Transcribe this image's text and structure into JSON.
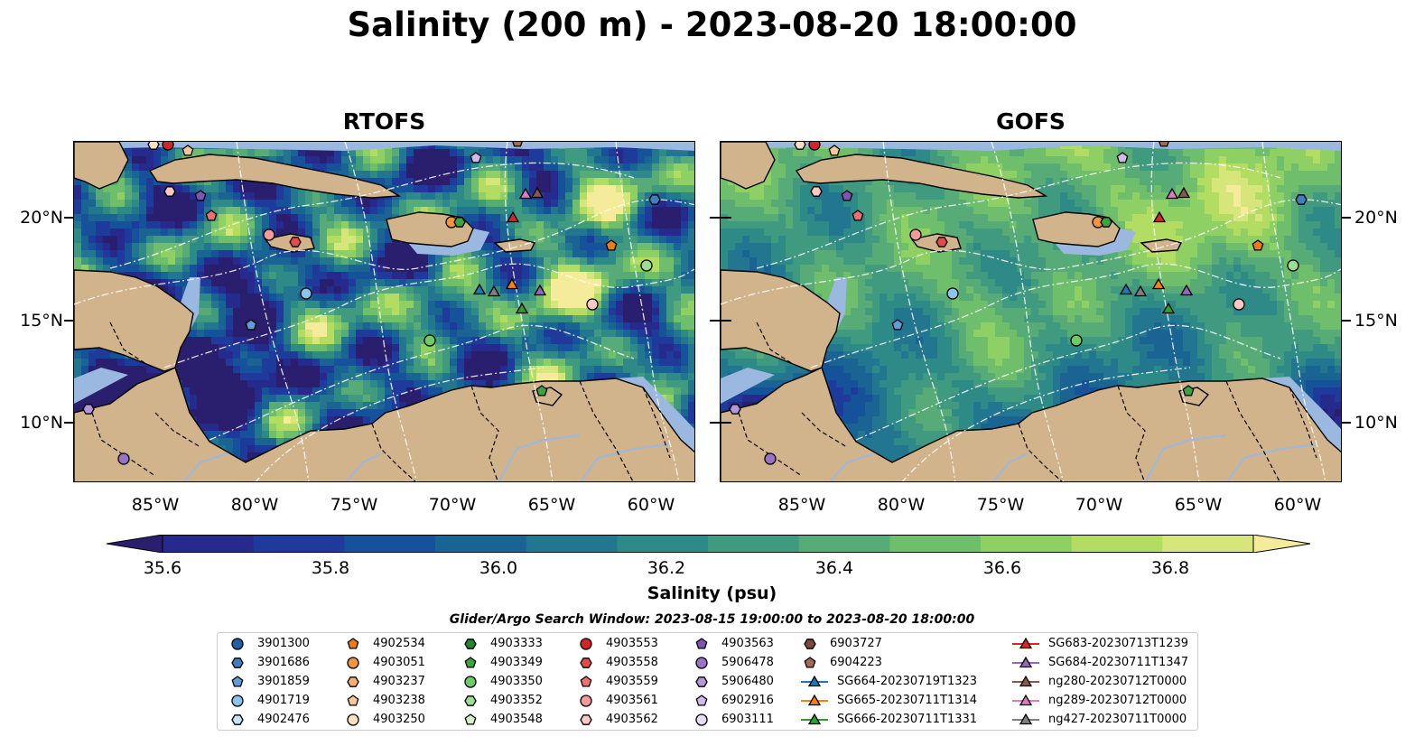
{
  "title": "Salinity (200 m) - 2023-08-20 18:00:00",
  "panels": [
    {
      "title": "RTOFS",
      "scheme": "rtofs"
    },
    {
      "title": "GOFS",
      "scheme": "gofs"
    }
  ],
  "lat_ticks": [
    "20°N",
    "15°N",
    "10°N"
  ],
  "lon_ticks": [
    "85°W",
    "80°W",
    "75°W",
    "70°W",
    "65°W",
    "60°W"
  ],
  "colorbar": {
    "label": "Salinity (psu)",
    "ticks": [
      "35.6",
      "35.8",
      "36.0",
      "36.2",
      "36.4",
      "36.6",
      "36.8"
    ],
    "colors": [
      "#2a1f6e",
      "#252a8c",
      "#1e3a9a",
      "#15529a",
      "#1a6494",
      "#23768f",
      "#2e8a86",
      "#3f9a7f",
      "#56ab76",
      "#6fbe6b",
      "#8ed064",
      "#b3dd62",
      "#d7e67a",
      "#f5ec9b"
    ]
  },
  "legend": {
    "title": "Glider/Argo Search Window: 2023-08-15 19:00:00 to 2023-08-20 18:00:00",
    "columns": [
      [
        {
          "label": "3901300",
          "marker": "circle",
          "color": "#1f5fa8"
        },
        {
          "label": "3901686",
          "marker": "hexagon",
          "color": "#3f7fc0"
        },
        {
          "label": "3901859",
          "marker": "pentagon",
          "color": "#5f9fd6"
        },
        {
          "label": "4901719",
          "marker": "circle",
          "color": "#8ec4ec"
        },
        {
          "label": "4902476",
          "marker": "hexagon",
          "color": "#c4e2f8"
        }
      ],
      [
        {
          "label": "4902534",
          "marker": "pentagon",
          "color": "#ee7a18"
        },
        {
          "label": "4903051",
          "marker": "circle",
          "color": "#f4953e"
        },
        {
          "label": "4903237",
          "marker": "hexagon",
          "color": "#f7b072"
        },
        {
          "label": "4903238",
          "marker": "pentagon",
          "color": "#f9c89a"
        },
        {
          "label": "4903250",
          "marker": "circle",
          "color": "#fde0c2"
        }
      ],
      [
        {
          "label": "4903333",
          "marker": "hexagon",
          "color": "#23852e"
        },
        {
          "label": "4903349",
          "marker": "pentagon",
          "color": "#3ca43e"
        },
        {
          "label": "4903350",
          "marker": "circle",
          "color": "#6ccd66"
        },
        {
          "label": "4903352",
          "marker": "hexagon",
          "color": "#9edd94"
        },
        {
          "label": "4903548",
          "marker": "pentagon",
          "color": "#d4f2c8"
        }
      ],
      [
        {
          "label": "4903553",
          "marker": "circle",
          "color": "#d4242a"
        },
        {
          "label": "4903558",
          "marker": "hexagon",
          "color": "#e34a4a"
        },
        {
          "label": "4903559",
          "marker": "pentagon",
          "color": "#ee6f6f"
        },
        {
          "label": "4903561",
          "marker": "circle",
          "color": "#f59a98"
        },
        {
          "label": "4903562",
          "marker": "hexagon",
          "color": "#fbc8c4"
        }
      ],
      [
        {
          "label": "4903563",
          "marker": "pentagon",
          "color": "#7e55b0"
        },
        {
          "label": "5906478",
          "marker": "circle",
          "color": "#9a73c6"
        },
        {
          "label": "5906480",
          "marker": "hexagon",
          "color": "#b696d8"
        },
        {
          "label": "6902916",
          "marker": "pentagon",
          "color": "#d0bae8"
        },
        {
          "label": "6903111",
          "marker": "circle",
          "color": "#e6dcf4"
        }
      ],
      [
        {
          "label": "6903727",
          "marker": "hexagon",
          "color": "#7b4a3a"
        },
        {
          "label": "6904223",
          "marker": "pentagon",
          "color": "#a46a58"
        },
        {
          "label": "SG664-20230719T1323",
          "marker": "triangle",
          "color": "#1f77b4"
        },
        {
          "label": "SG665-20230711T1314",
          "marker": "triangle",
          "color": "#ff7f0e"
        },
        {
          "label": "SG666-20230711T1331",
          "marker": "triangle",
          "color": "#2ca02c"
        }
      ],
      [
        {
          "label": "SG683-20230713T1239",
          "marker": "triangle",
          "color": "#d62728"
        },
        {
          "label": "SG684-20230711T1347",
          "marker": "triangle",
          "color": "#9467bd"
        },
        {
          "label": "ng280-20230712T0000",
          "marker": "triangle",
          "color": "#8c564b"
        },
        {
          "label": "ng289-20230712T0000",
          "marker": "triangle",
          "color": "#e377c2"
        },
        {
          "label": "ng427-20230711T0000",
          "marker": "triangle",
          "color": "#7f7f7f"
        }
      ]
    ]
  },
  "map_colors": {
    "land": "#d2b48c",
    "shallow": "#9bb8e0",
    "river": "#9bb8e0"
  }
}
